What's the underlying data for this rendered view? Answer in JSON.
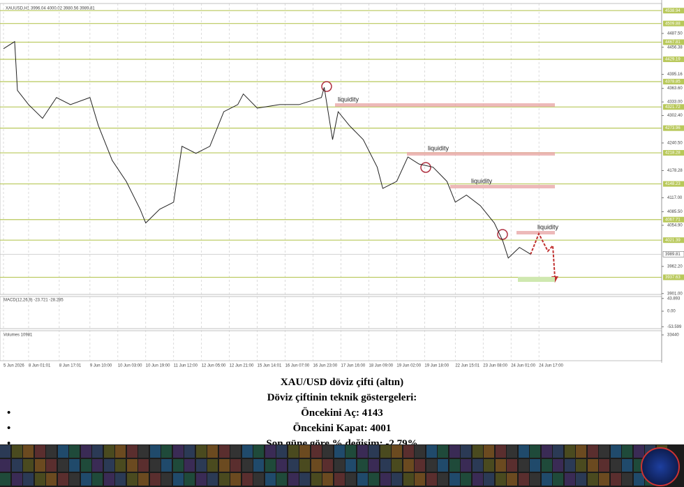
{
  "header": "XAUUSD,H1 3996.04 4000.02 3980.56 3989.81",
  "chart_data": {
    "type": "line",
    "x": [
      0,
      4,
      5,
      9,
      14,
      19,
      24,
      31,
      34,
      39,
      44,
      49,
      51,
      56,
      61,
      64,
      69,
      74,
      79,
      84,
      86,
      91,
      99,
      106,
      114,
      115,
      118,
      120,
      124,
      129,
      134,
      136,
      141,
      145,
      149,
      154,
      159,
      162,
      166,
      171,
      176,
      179,
      181,
      185,
      189
    ],
    "series": [
      {
        "color": "#222222",
        "values": [
          4453,
          4469,
          4359,
          4327,
          4296,
          4343,
          4327,
          4343,
          4280,
          4201,
          4154,
          4091,
          4060,
          4091,
          4107,
          4233,
          4217,
          4233,
          4311,
          4327,
          4351,
          4319,
          4327,
          4327,
          4343,
          4366,
          4248,
          4311,
          4280,
          4248,
          4186,
          4138,
          4154,
          4209,
          4193,
          4186,
          4154,
          4107,
          4123,
          4099,
          4060,
          4020,
          3981,
          4005,
          3989.81
        ]
      }
    ],
    "xlim": [
      0,
      236
    ],
    "xticks": [
      {
        "value": 0,
        "label": "5 Jun 2026"
      },
      {
        "value": 9,
        "label": "8 Jun 01:01"
      },
      {
        "value": 20,
        "label": "8 Jun 17:01"
      },
      {
        "value": 31,
        "label": "9 Jun 10:00"
      },
      {
        "value": 41,
        "label": "10 Jun 03:00"
      },
      {
        "value": 51,
        "label": "10 Jun 19:00"
      },
      {
        "value": 61,
        "label": "11 Jun 12:00"
      },
      {
        "value": 71,
        "label": "12 Jun 05:00"
      },
      {
        "value": 81,
        "label": "12 Jun 21:00"
      },
      {
        "value": 91,
        "label": "15 Jun 14:01"
      },
      {
        "value": 101,
        "label": "16 Jun 07:00"
      },
      {
        "value": 111,
        "label": "16 Jun 23:00"
      },
      {
        "value": 121,
        "label": "17 Jun 16:00"
      },
      {
        "value": 131,
        "label": "18 Jun 09:00"
      },
      {
        "value": 141,
        "label": "19 Jun 02:00"
      },
      {
        "value": 151,
        "label": "19 Jun 18:00"
      },
      {
        "value": 162,
        "label": "22 Jun 15:01"
      },
      {
        "value": 172,
        "label": "23 Jun 08:00"
      },
      {
        "value": 182,
        "label": "24 Jun 01:00"
      },
      {
        "value": 192,
        "label": "24 Jun 17:00"
      }
    ],
    "ylim": [
      3899,
      4555
    ],
    "yticks": [
      {
        "value": 4487.5,
        "label": "4487.50"
      },
      {
        "value": 4456.38,
        "label": "4456.38"
      },
      {
        "value": 4395.16,
        "label": "4395.16"
      },
      {
        "value": 4363.6,
        "label": "4363.60"
      },
      {
        "value": 4333,
        "label": "4333.00"
      },
      {
        "value": 4302.4,
        "label": "4302.40"
      },
      {
        "value": 4240.5,
        "label": "4240.50"
      },
      {
        "value": 4178.28,
        "label": "4178.28"
      },
      {
        "value": 4117,
        "label": "4117.00"
      },
      {
        "value": 4085.5,
        "label": "4085.50"
      },
      {
        "value": 4054.9,
        "label": "4054.90"
      },
      {
        "value": 3962.2,
        "label": "3962.20"
      },
      {
        "value": 3901,
        "label": "3901.00"
      }
    ],
    "levels": [
      4538.94,
      4509.88,
      4467.81,
      4429.19,
      4378.85,
      4321.72,
      4273.96,
      4218.28,
      4148.23,
      4067.71,
      4021.39,
      3937.63
    ],
    "current": 3989.81,
    "annotations": [
      "liquidity",
      "liquidity",
      "liquidity",
      "liquidity"
    ],
    "grid": true,
    "level_color": "#b8c85a",
    "macd": {
      "label": "MACD(12,26,9) -23.721 -28.285",
      "ylim": [
        -60,
        50.5
      ],
      "yticks": [
        43.893,
        {
          "value": 0,
          "label": "0.00"
        },
        -53.599
      ]
    },
    "volume": {
      "label": "Volumes 10981",
      "ylim": [
        0,
        38860
      ],
      "yticks": [
        33440
      ]
    }
  },
  "caption": {
    "title": "XAU/USD döviz çifti (altın)",
    "subtitle": "Döviz çiftinin teknik göstergeleri:",
    "items": [
      "Öncekini Aç: 4143",
      "Öncekini Kapat: 4001",
      "Son güne göre % değişim: -2.79%"
    ]
  }
}
